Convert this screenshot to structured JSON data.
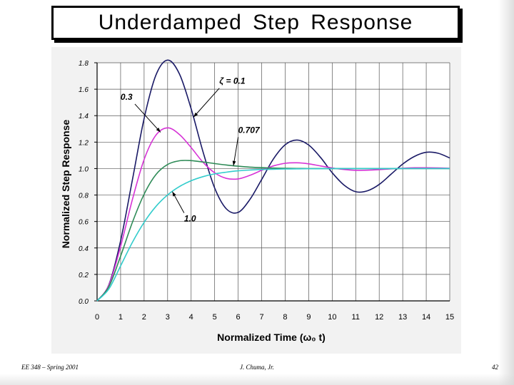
{
  "slide": {
    "title": "Underdamped  Step  Response",
    "footer_left": "EE 348 – Spring 2001",
    "footer_center": "J. Chuma, Jr.",
    "footer_right": "42"
  },
  "chart_data": {
    "type": "line",
    "title": "",
    "xlabel": "Normalized  Time  (ω₀ t)",
    "ylabel": "Normalized Step Response",
    "xlim": [
      0,
      15
    ],
    "ylim": [
      0,
      1.8
    ],
    "x_ticks": [
      "0",
      "1",
      "2",
      "3",
      "4",
      "5",
      "6",
      "7",
      "8",
      "9",
      "10",
      "11",
      "12",
      "13",
      "14",
      "15"
    ],
    "y_ticks": [
      "0.0",
      "0.2",
      "0.4",
      "0.6",
      "0.8",
      "1.0",
      "1.2",
      "1.4",
      "1.6",
      "1.8"
    ],
    "grid": true,
    "x": [
      0,
      0.5,
      1,
      1.5,
      2,
      2.5,
      3,
      3.5,
      4,
      4.5,
      5,
      5.5,
      6,
      6.5,
      7,
      7.5,
      8,
      8.5,
      9,
      9.5,
      10,
      10.5,
      11,
      11.5,
      12,
      12.5,
      13,
      13.5,
      14,
      14.5,
      15
    ],
    "series": [
      {
        "name": "ζ = 0.1",
        "color": "#1a1a66",
        "values": [
          0.0,
          0.122,
          0.453,
          0.913,
          1.379,
          1.705,
          1.82,
          1.716,
          1.453,
          1.13,
          0.853,
          0.695,
          0.669,
          0.767,
          0.917,
          1.073,
          1.18,
          1.216,
          1.178,
          1.085,
          0.969,
          0.876,
          0.825,
          0.832,
          0.88,
          0.957,
          1.034,
          1.092,
          1.123,
          1.116,
          1.08
        ]
      },
      {
        "name": "0.3",
        "color": "#d633d6",
        "values": [
          0.0,
          0.118,
          0.411,
          0.765,
          1.069,
          1.252,
          1.308,
          1.258,
          1.159,
          1.049,
          0.968,
          0.926,
          0.922,
          0.949,
          0.987,
          1.02,
          1.04,
          1.044,
          1.036,
          1.02,
          1.005,
          0.993,
          0.987,
          0.988,
          0.992,
          0.998,
          1.003,
          1.006,
          1.006,
          1.005,
          1.002
        ]
      },
      {
        "name": "0.707",
        "color": "#2e8b57",
        "values": [
          0.0,
          0.107,
          0.338,
          0.593,
          0.807,
          0.954,
          1.031,
          1.059,
          1.06,
          1.05,
          1.038,
          1.027,
          1.018,
          1.011,
          1.007,
          1.004,
          1.002,
          1.001,
          1.0,
          1.0,
          1.0,
          1.0,
          1.0,
          1.0,
          1.0,
          1.0,
          1.0,
          1.0,
          1.0,
          1.0,
          1.0
        ]
      },
      {
        "name": "1.0",
        "color": "#33cccc",
        "values": [
          0.0,
          0.09,
          0.264,
          0.442,
          0.594,
          0.713,
          0.801,
          0.864,
          0.908,
          0.939,
          0.96,
          0.973,
          0.983,
          0.989,
          0.993,
          0.995,
          0.997,
          0.998,
          0.999,
          0.999,
          1.0,
          1.0,
          1.0,
          1.0,
          1.0,
          1.0,
          1.0,
          1.0,
          1.0,
          1.0,
          1.0
        ]
      }
    ],
    "annotations": [
      {
        "text": "ζ = 0.1",
        "series": 0,
        "at_x": 4.1,
        "label_x": 5.2,
        "label_y": 1.64
      },
      {
        "text": "0.3",
        "series": 1,
        "at_x": 2.7,
        "label_x": 1.0,
        "label_y": 1.52
      },
      {
        "text": "0.707",
        "series": 2,
        "at_x": 5.8,
        "label_x": 6.0,
        "label_y": 1.27
      },
      {
        "text": "1.0",
        "series": 3,
        "at_x": 3.2,
        "label_x": 3.7,
        "label_y": 0.6
      }
    ]
  }
}
